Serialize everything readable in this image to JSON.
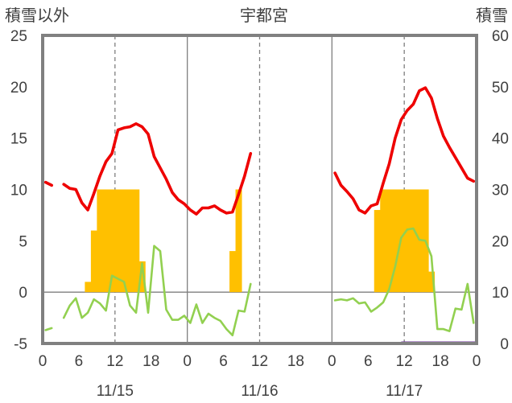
{
  "chart_data": {
    "type": "bar+line",
    "title": "宇都宮",
    "left_axis_label": "積雪以外",
    "right_axis_label": "積雪",
    "left_ylim": [
      -5,
      25
    ],
    "left_yticks": [
      "-5",
      "0",
      "5",
      "10",
      "15",
      "20",
      "25"
    ],
    "right_ylim": [
      0,
      60
    ],
    "right_yticks": [
      "0",
      "10",
      "20",
      "30",
      "40",
      "50",
      "60"
    ],
    "x_ticks": [
      "0",
      "6",
      "12",
      "18",
      "0",
      "6",
      "12",
      "18",
      "0",
      "6",
      "12",
      "18",
      "0"
    ],
    "date_labels": [
      "11/15",
      "11/16",
      "11/17"
    ],
    "xlim_hours": [
      0,
      72
    ],
    "grid": "dashed vertical lines at 12h, solid dividers at 24h and 48h",
    "colors": {
      "temperature": "#ee0000",
      "precipitation": "#ffc000",
      "wind_or_other": "#92d050",
      "snow_depth": "#7030a0",
      "frame": "#808080"
    },
    "series": [
      {
        "kind": "line",
        "points": [
          [
            0,
            10.7
          ],
          [
            1,
            10.4
          ],
          [
            2,
            null
          ],
          [
            3,
            10.5
          ],
          [
            4,
            10.1
          ],
          [
            5,
            10.0
          ],
          [
            6,
            8.7
          ],
          [
            7,
            8.0
          ],
          [
            8,
            9.6
          ],
          [
            9,
            11.3
          ],
          [
            10,
            12.7
          ],
          [
            11,
            13.5
          ],
          [
            12,
            15.8
          ],
          [
            13,
            16.0
          ],
          [
            14,
            16.1
          ],
          [
            15,
            16.4
          ],
          [
            16,
            16.1
          ],
          [
            17,
            15.4
          ],
          [
            18,
            13.2
          ],
          [
            19,
            12.1
          ],
          [
            20,
            11.0
          ],
          [
            21,
            9.7
          ],
          [
            22,
            9.0
          ],
          [
            23,
            8.6
          ],
          [
            24,
            8.0
          ],
          [
            25,
            7.6
          ],
          [
            26,
            8.2
          ],
          [
            27,
            8.2
          ],
          [
            28,
            8.4
          ],
          [
            29,
            8.0
          ],
          [
            30,
            7.7
          ],
          [
            31,
            7.8
          ],
          [
            32,
            9.5
          ],
          [
            33,
            11.3
          ],
          [
            34,
            13.5
          ],
          [
            35,
            null
          ],
          [
            36,
            null
          ],
          [
            37,
            null
          ],
          [
            38,
            null
          ],
          [
            39,
            null
          ],
          [
            40,
            null
          ],
          [
            41,
            null
          ],
          [
            42,
            null
          ],
          [
            43,
            null
          ],
          [
            44,
            null
          ],
          [
            45,
            null
          ],
          [
            46,
            null
          ],
          [
            47,
            null
          ],
          [
            48,
            11.6
          ],
          [
            49,
            10.4
          ],
          [
            50,
            9.8
          ],
          [
            51,
            9.1
          ],
          [
            52,
            8.0
          ],
          [
            53,
            7.7
          ],
          [
            54,
            8.4
          ],
          [
            55,
            8.6
          ],
          [
            56,
            10.6
          ],
          [
            57,
            12.5
          ],
          [
            58,
            15.0
          ],
          [
            59,
            16.8
          ],
          [
            60,
            17.7
          ],
          [
            61,
            18.3
          ],
          [
            62,
            19.6
          ],
          [
            63,
            19.9
          ],
          [
            64,
            18.9
          ],
          [
            65,
            16.9
          ],
          [
            66,
            15.2
          ],
          [
            67,
            14.1
          ],
          [
            68,
            13.1
          ],
          [
            69,
            12.1
          ],
          [
            70,
            11.1
          ],
          [
            71,
            10.8
          ]
        ]
      },
      {
        "kind": "bar",
        "points": [
          [
            0,
            0
          ],
          [
            1,
            0
          ],
          [
            2,
            0
          ],
          [
            3,
            0
          ],
          [
            4,
            0
          ],
          [
            5,
            0
          ],
          [
            6,
            0
          ],
          [
            7,
            1
          ],
          [
            8,
            6
          ],
          [
            9,
            10
          ],
          [
            10,
            10
          ],
          [
            11,
            10
          ],
          [
            12,
            10
          ],
          [
            13,
            10
          ],
          [
            14,
            10
          ],
          [
            15,
            10
          ],
          [
            16,
            3
          ],
          [
            17,
            0
          ],
          [
            18,
            0
          ],
          [
            19,
            0
          ],
          [
            20,
            0
          ],
          [
            21,
            0
          ],
          [
            22,
            0
          ],
          [
            23,
            0
          ],
          [
            24,
            0
          ],
          [
            25,
            0
          ],
          [
            26,
            0
          ],
          [
            27,
            0
          ],
          [
            28,
            0
          ],
          [
            29,
            0
          ],
          [
            30,
            0
          ],
          [
            31,
            4
          ],
          [
            32,
            10
          ],
          [
            33,
            0
          ],
          [
            34,
            0
          ],
          [
            35,
            0
          ],
          [
            36,
            0
          ],
          [
            37,
            0
          ],
          [
            38,
            0
          ],
          [
            39,
            0
          ],
          [
            40,
            0
          ],
          [
            41,
            0
          ],
          [
            42,
            0
          ],
          [
            43,
            0
          ],
          [
            44,
            0
          ],
          [
            45,
            0
          ],
          [
            46,
            0
          ],
          [
            47,
            0
          ],
          [
            48,
            0
          ],
          [
            49,
            0
          ],
          [
            50,
            0
          ],
          [
            51,
            0
          ],
          [
            52,
            0
          ],
          [
            53,
            0
          ],
          [
            54,
            0
          ],
          [
            55,
            8
          ],
          [
            56,
            10
          ],
          [
            57,
            10
          ],
          [
            58,
            10
          ],
          [
            59,
            10
          ],
          [
            60,
            10
          ],
          [
            61,
            10
          ],
          [
            62,
            10
          ],
          [
            63,
            10
          ],
          [
            64,
            2
          ],
          [
            65,
            0
          ],
          [
            66,
            0
          ],
          [
            67,
            0
          ],
          [
            68,
            0
          ],
          [
            69,
            0
          ],
          [
            70,
            0
          ],
          [
            71,
            0
          ]
        ]
      },
      {
        "kind": "line",
        "points": [
          [
            0,
            -3.7
          ],
          [
            1,
            -3.5
          ],
          [
            2,
            null
          ],
          [
            3,
            -2.5
          ],
          [
            4,
            -1.3
          ],
          [
            5,
            -0.6
          ],
          [
            6,
            -2.5
          ],
          [
            7,
            -2.0
          ],
          [
            8,
            -0.7
          ],
          [
            9,
            -1.1
          ],
          [
            10,
            -1.8
          ],
          [
            11,
            1.6
          ],
          [
            12,
            1.3
          ],
          [
            13,
            1.0
          ],
          [
            14,
            -1.3
          ],
          [
            15,
            -2.0
          ],
          [
            16,
            2.8
          ],
          [
            17,
            -2.0
          ],
          [
            18,
            4.5
          ],
          [
            19,
            4.0
          ],
          [
            20,
            -1.7
          ],
          [
            21,
            -2.7
          ],
          [
            22,
            -2.7
          ],
          [
            23,
            -2.3
          ],
          [
            24,
            -3.0
          ],
          [
            25,
            -1.2
          ],
          [
            26,
            -3.0
          ],
          [
            27,
            -2.1
          ],
          [
            28,
            -2.5
          ],
          [
            29,
            -2.8
          ],
          [
            30,
            -3.6
          ],
          [
            31,
            -4.2
          ],
          [
            32,
            -1.8
          ],
          [
            33,
            -1.9
          ],
          [
            34,
            0.8
          ],
          [
            35,
            null
          ],
          [
            36,
            null
          ],
          [
            37,
            null
          ],
          [
            38,
            null
          ],
          [
            39,
            null
          ],
          [
            40,
            null
          ],
          [
            41,
            null
          ],
          [
            42,
            null
          ],
          [
            43,
            null
          ],
          [
            44,
            null
          ],
          [
            45,
            null
          ],
          [
            46,
            null
          ],
          [
            47,
            null
          ],
          [
            48,
            -0.8
          ],
          [
            49,
            -0.7
          ],
          [
            50,
            -0.8
          ],
          [
            51,
            -0.6
          ],
          [
            52,
            -1.1
          ],
          [
            53,
            -1.0
          ],
          [
            54,
            -1.9
          ],
          [
            55,
            -1.5
          ],
          [
            56,
            -1.0
          ],
          [
            57,
            0.3
          ],
          [
            58,
            2.5
          ],
          [
            59,
            5.3
          ],
          [
            60,
            6.1
          ],
          [
            61,
            6.2
          ],
          [
            62,
            5.1
          ],
          [
            63,
            5.0
          ],
          [
            64,
            3.5
          ],
          [
            65,
            -3.6
          ],
          [
            66,
            -3.6
          ],
          [
            67,
            -3.8
          ],
          [
            68,
            -1.6
          ],
          [
            69,
            -1.7
          ],
          [
            70,
            0.8
          ],
          [
            71,
            -3.0
          ]
        ]
      },
      {
        "kind": "line_right_axis",
        "points": [
          [
            60,
            0
          ],
          [
            61,
            0
          ],
          [
            62,
            0
          ],
          [
            63,
            0
          ],
          [
            64,
            0
          ],
          [
            65,
            0
          ],
          [
            66,
            0
          ],
          [
            67,
            0
          ],
          [
            68,
            0
          ],
          [
            69,
            0
          ],
          [
            70,
            0
          ],
          [
            71,
            0
          ],
          [
            72,
            0
          ]
        ]
      }
    ]
  }
}
